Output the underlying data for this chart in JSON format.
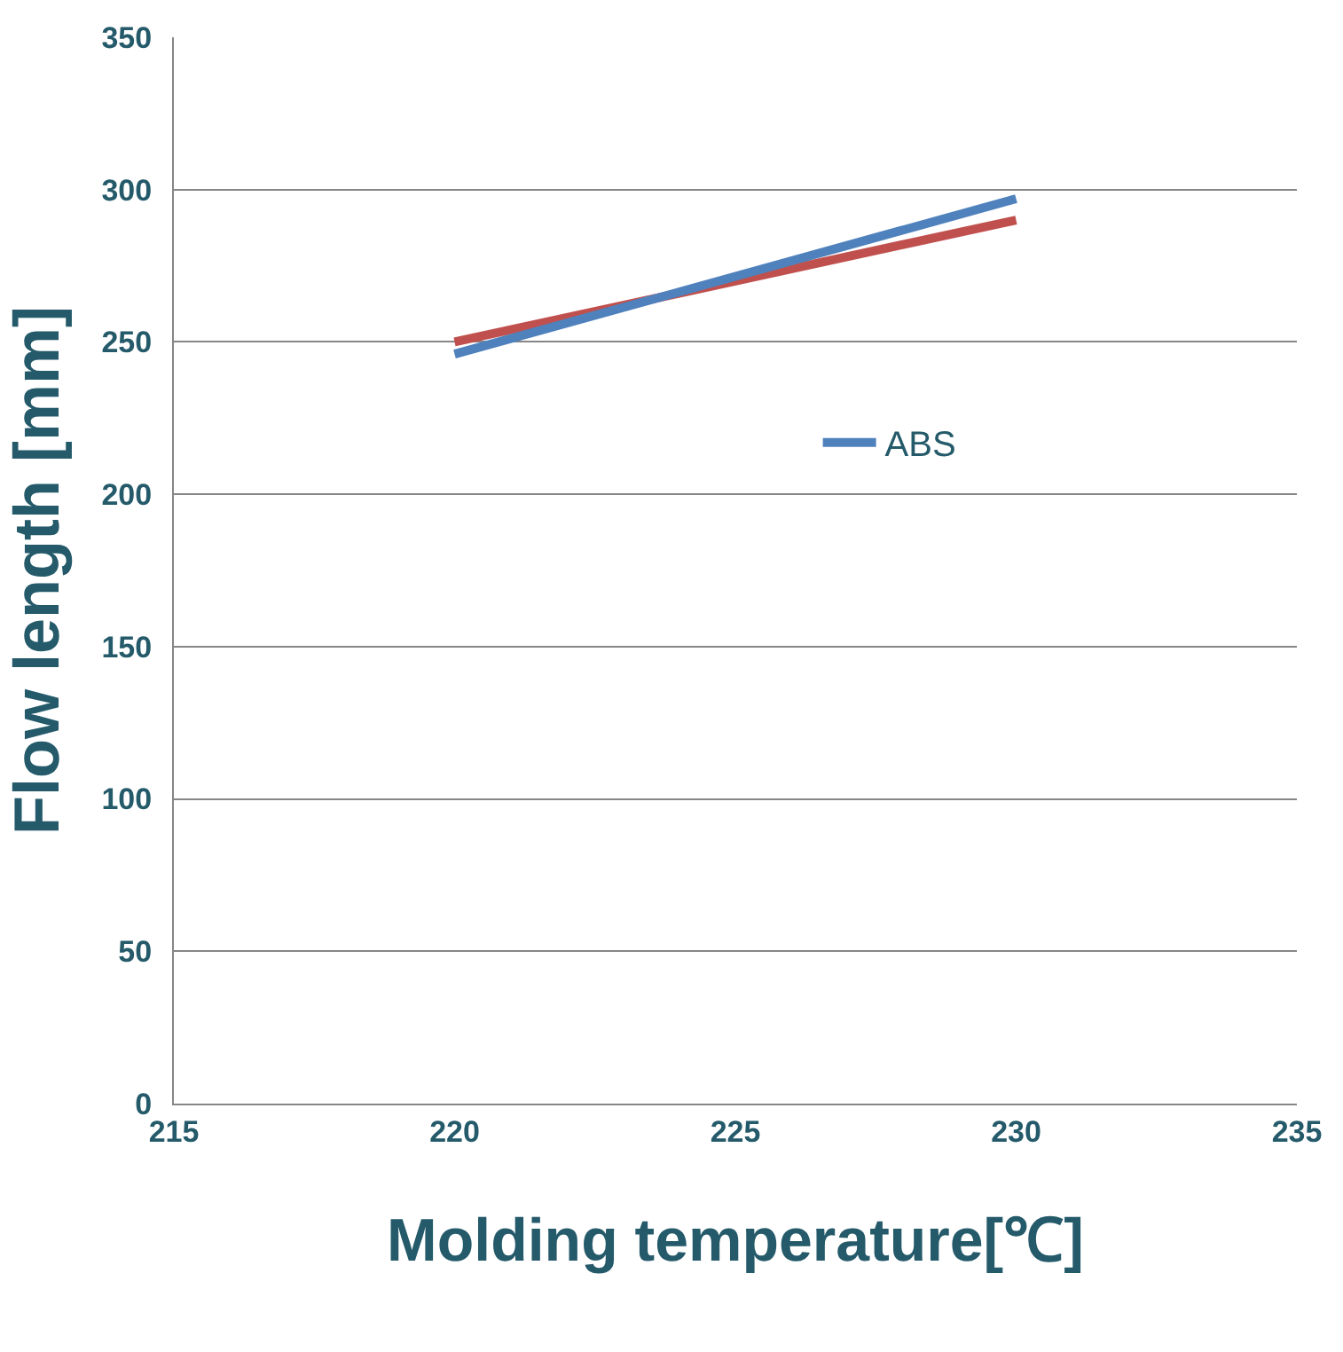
{
  "chart_data": {
    "type": "line",
    "xlabel": "Molding temperature[℃]",
    "ylabel": "Flow length [mm]",
    "x": [
      220,
      230
    ],
    "series": [
      {
        "color": "#c0504d",
        "values": [
          250,
          290
        ]
      },
      {
        "name": "ABS",
        "color": "#4f81bd",
        "values": [
          246,
          297
        ]
      }
    ],
    "xlim": [
      215,
      235
    ],
    "xticks": [
      215,
      220,
      225,
      230,
      235
    ],
    "ylim": [
      0,
      350
    ],
    "yticks": [
      0,
      50,
      100,
      150,
      200,
      250,
      300,
      350
    ],
    "grid": "y",
    "legend": "right",
    "marker": "none",
    "line_style": "solid"
  }
}
